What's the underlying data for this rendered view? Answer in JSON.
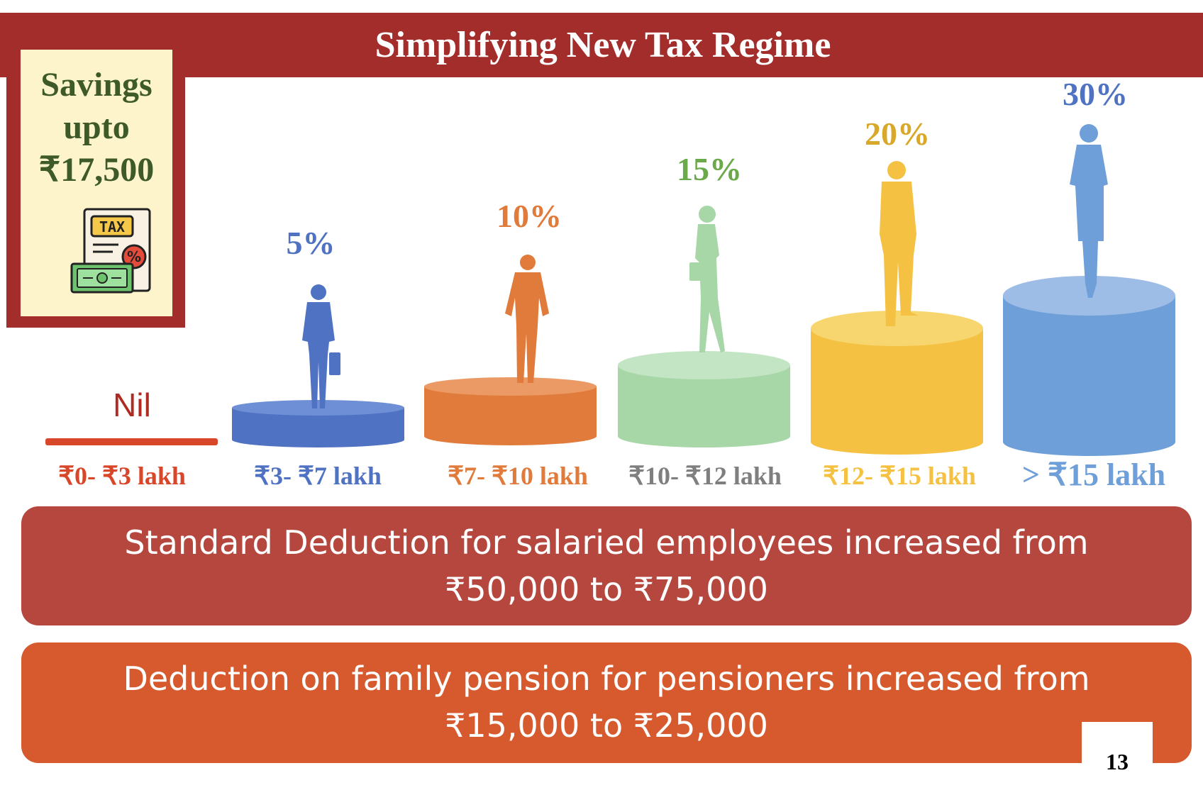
{
  "header": {
    "title": "Simplifying New Tax Regime"
  },
  "savings": {
    "line1": "Savings",
    "line2": "upto",
    "line3": "₹17,500",
    "icon": "tax-document-icon",
    "icon_text": "TAX",
    "icon_symbol": "%"
  },
  "slabs": [
    {
      "rate": "Nil",
      "range": "₹0- ₹3 lakh",
      "color": "#d9472b",
      "figure": "none"
    },
    {
      "rate": "5%",
      "range": "₹3- ₹7 lakh",
      "color": "#4f72c2",
      "figure": "businessman-with-briefcase"
    },
    {
      "rate": "10%",
      "range": "₹7- ₹10 lakh",
      "color": "#e07b3c",
      "figure": "businessman-hands-in-pockets"
    },
    {
      "rate": "15%",
      "range": "₹10- ₹12 lakh",
      "color": "#a7d6a7",
      "rate_color": "#6aaa4a",
      "range_color": "#7f7f7f",
      "figure": "businesswoman-walking"
    },
    {
      "rate": "20%",
      "range": "₹12- ₹15 lakh",
      "color": "#f4c142",
      "rate_color": "#d9a82a",
      "figure": "businessman-arms-crossed"
    },
    {
      "rate": "30%",
      "range": "> ₹15 lakh",
      "color": "#6f9fd8",
      "rate_color": "#4f72c2",
      "figure": "businesswoman-standing"
    }
  ],
  "banners": [
    {
      "line1": "Standard Deduction for salaried employees increased from",
      "line2": "₹50,000 to ₹75,000",
      "color": "#b5473f"
    },
    {
      "line1": "Deduction on family pension for pensioners increased from",
      "line2": "₹15,000 to ₹25,000",
      "color": "#d65a2e"
    }
  ],
  "page_number": "13"
}
